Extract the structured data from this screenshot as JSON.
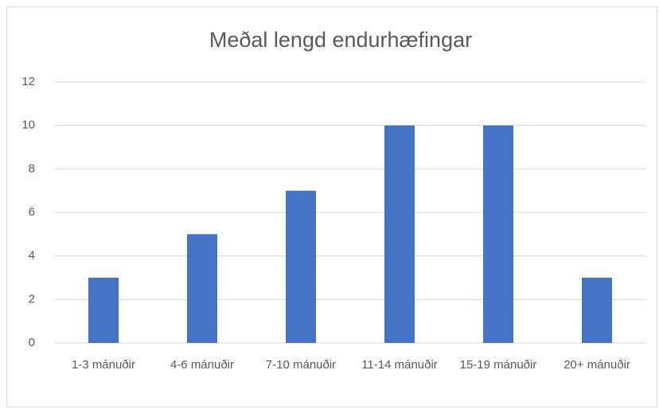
{
  "chart_data": {
    "type": "bar",
    "title": "Meðal lengd endurhæfingar",
    "categories": [
      "1-3 mánuðir",
      "4-6 mánuðir",
      "7-10 mánuðir",
      "11-14 mánuðir",
      "15-19 mánuðir",
      "20+ mánuðir"
    ],
    "values": [
      3,
      5,
      7,
      10,
      10,
      3
    ],
    "color": "#4472c4",
    "ylim": [
      0,
      12
    ],
    "yticks": [
      0,
      2,
      4,
      6,
      8,
      10,
      12
    ],
    "grid": true
  }
}
